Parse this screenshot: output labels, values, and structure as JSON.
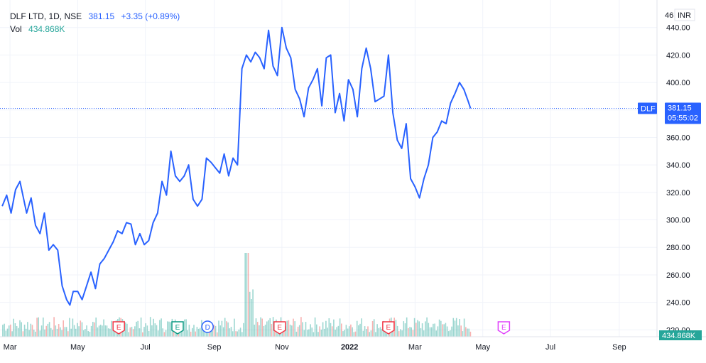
{
  "legend": {
    "symbol": "DLF LTD, 1D, NSE",
    "last": "381.15",
    "change": "+3.35 (+0.89%)",
    "vol_label": "Vol",
    "vol_value": "434.868K"
  },
  "price_badge": {
    "ticker": "DLF",
    "price": "381.15",
    "countdown": "05:55:02",
    "color": "#2962ff"
  },
  "volume_badge": "434.868K",
  "currency_badge": "INR",
  "axis_top_fragment": "46",
  "colors": {
    "line": "#2962ff",
    "volume_up": "#26a69a",
    "volume_down": "#ef5350",
    "grid": "#f0f3fa",
    "axis_text": "#131722",
    "earnings": "#f23645",
    "earnings_future": "#e040fb",
    "dividend": "#2962ff",
    "split": "#089981"
  },
  "events": [
    {
      "type": "E",
      "x": "2021-06-07",
      "style": "earnings",
      "icon": "earnings-marker-icon"
    },
    {
      "type": "E",
      "x": "2021-07-30",
      "style": "split",
      "icon": "split-marker-icon"
    },
    {
      "type": "D",
      "x": "2021-08-26",
      "style": "dividend",
      "icon": "dividend-marker-icon"
    },
    {
      "type": "E",
      "x": "2021-10-30",
      "style": "earnings",
      "icon": "earnings-marker-icon"
    },
    {
      "type": "E",
      "x": "2022-02-05",
      "style": "earnings",
      "icon": "earnings-marker-icon"
    },
    {
      "type": "E",
      "x": "2022-05-20",
      "style": "earnings_future",
      "icon": "earnings-marker-icon"
    }
  ],
  "chart_data": {
    "type": "line",
    "title": "DLF LTD, 1D, NSE",
    "ylim": [
      215,
      460
    ],
    "xlim": [
      "2021-02-20",
      "2022-10-05"
    ],
    "y_ticks": [
      220,
      240,
      260,
      280,
      300,
      320,
      340,
      360,
      380,
      400,
      420,
      440
    ],
    "y_tick_labels": [
      "220.00",
      "240.00",
      "260.00",
      "280.00",
      "300.00",
      "320.00",
      "340.00",
      "360.00",
      "380.00",
      "400.00",
      "420.00",
      "440.00"
    ],
    "x_ticks": [
      {
        "label": "Mar",
        "date": "2021-03-01"
      },
      {
        "label": "May",
        "date": "2021-05-01"
      },
      {
        "label": "Jul",
        "date": "2021-07-01"
      },
      {
        "label": "Sep",
        "date": "2021-09-01"
      },
      {
        "label": "Nov",
        "date": "2021-11-01"
      },
      {
        "label": "2022",
        "date": "2022-01-01"
      },
      {
        "label": "Mar",
        "date": "2022-03-01"
      },
      {
        "label": "May",
        "date": "2022-05-01"
      },
      {
        "label": "Jul",
        "date": "2022-07-01"
      },
      {
        "label": "Sep",
        "date": "2022-09-01"
      }
    ],
    "grid": true,
    "series": [
      {
        "x": [
          "2021-02-22",
          "2021-02-26",
          "2021-03-02",
          "2021-03-06",
          "2021-03-10",
          "2021-03-16",
          "2021-03-20",
          "2021-03-24",
          "2021-03-28",
          "2021-04-01",
          "2021-04-05",
          "2021-04-09",
          "2021-04-13",
          "2021-04-17",
          "2021-04-21",
          "2021-04-24",
          "2021-04-27",
          "2021-05-01",
          "2021-05-05",
          "2021-05-09",
          "2021-05-13",
          "2021-05-17",
          "2021-05-21",
          "2021-05-25",
          "2021-05-29",
          "2021-06-02",
          "2021-06-06",
          "2021-06-10",
          "2021-06-14",
          "2021-06-18",
          "2021-06-22",
          "2021-06-26",
          "2021-06-30",
          "2021-07-04",
          "2021-07-08",
          "2021-07-12",
          "2021-07-16",
          "2021-07-20",
          "2021-07-24",
          "2021-07-28",
          "2021-08-01",
          "2021-08-05",
          "2021-08-09",
          "2021-08-13",
          "2021-08-17",
          "2021-08-21",
          "2021-08-25",
          "2021-08-29",
          "2021-09-02",
          "2021-09-06",
          "2021-09-10",
          "2021-09-14",
          "2021-09-18",
          "2021-09-22",
          "2021-09-26",
          "2021-09-30",
          "2021-10-04",
          "2021-10-08",
          "2021-10-12",
          "2021-10-16",
          "2021-10-20",
          "2021-10-24",
          "2021-10-28",
          "2021-11-01",
          "2021-11-05",
          "2021-11-09",
          "2021-11-13",
          "2021-11-17",
          "2021-11-21",
          "2021-11-25",
          "2021-11-29",
          "2021-12-03",
          "2021-12-07",
          "2021-12-11",
          "2021-12-15",
          "2021-12-19",
          "2021-12-23",
          "2021-12-27",
          "2021-12-31",
          "2022-01-04",
          "2022-01-08",
          "2022-01-12",
          "2022-01-16",
          "2022-01-20",
          "2022-01-24",
          "2022-01-28",
          "2022-02-01",
          "2022-02-05",
          "2022-02-09",
          "2022-02-13",
          "2022-02-17",
          "2022-02-21",
          "2022-02-25",
          "2022-03-01",
          "2022-03-05",
          "2022-03-09",
          "2022-03-13",
          "2022-03-17",
          "2022-03-21",
          "2022-03-25",
          "2022-03-29",
          "2022-04-02",
          "2022-04-06",
          "2022-04-10",
          "2022-04-14",
          "2022-04-18",
          "2022-04-20"
        ],
        "values": [
          310,
          318,
          305,
          322,
          328,
          305,
          316,
          296,
          290,
          305,
          278,
          282,
          278,
          252,
          242,
          238,
          248,
          248,
          242,
          252,
          262,
          250,
          268,
          272,
          278,
          284,
          292,
          290,
          298,
          297,
          282,
          290,
          282,
          285,
          298,
          305,
          328,
          318,
          350,
          332,
          328,
          332,
          340,
          315,
          310,
          315,
          345,
          342,
          338,
          334,
          348,
          332,
          345,
          340,
          410,
          420,
          415,
          422,
          418,
          410,
          438,
          412,
          405,
          440,
          425,
          418,
          395,
          388,
          375,
          396,
          402,
          410,
          383,
          418,
          420,
          378,
          392,
          372,
          402,
          395,
          375,
          410,
          425,
          410,
          386,
          388,
          390,
          420,
          378,
          358,
          352,
          370,
          330,
          324,
          316,
          330,
          340,
          360,
          364,
          372,
          370,
          385,
          392,
          400,
          395,
          386,
          381.15
        ]
      }
    ],
    "volume": {
      "unit": "K",
      "last": 434.868
    }
  }
}
